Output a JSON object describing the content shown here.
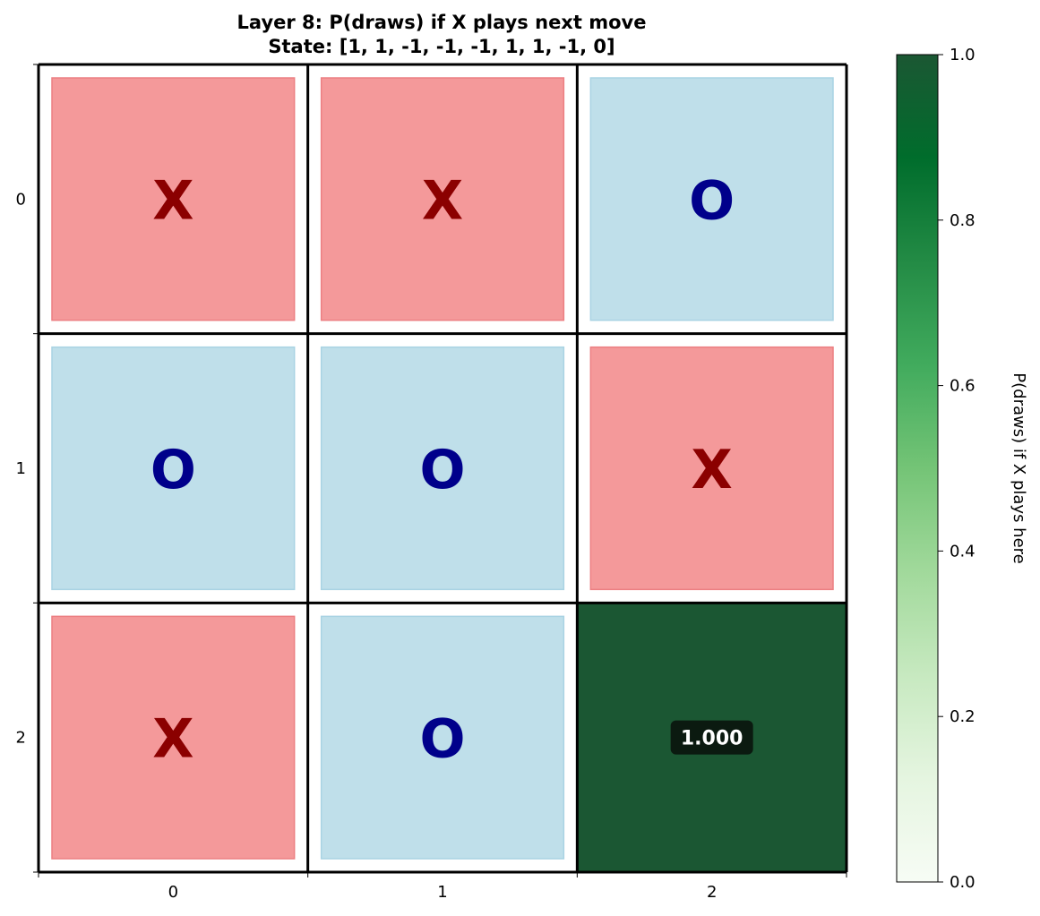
{
  "chart_data": {
    "type": "heatmap",
    "title": "Layer 8: P(draws) if X plays next move",
    "subtitle": "State: [1, 1, -1, -1, -1, 1, 1, -1, 0]",
    "x_ticks": [
      "0",
      "1",
      "2"
    ],
    "y_ticks": [
      "0",
      "1",
      "2"
    ],
    "board": [
      [
        "X",
        "X",
        "O"
      ],
      [
        "O",
        "O",
        "X"
      ],
      [
        "X",
        "O",
        ""
      ]
    ],
    "values": [
      [
        null,
        null,
        null
      ],
      [
        null,
        null,
        null
      ],
      [
        null,
        null,
        1.0
      ]
    ],
    "value_labels": [
      [
        "",
        "",
        ""
      ],
      [
        "",
        "",
        ""
      ],
      [
        "",
        "",
        "1.000"
      ]
    ],
    "colorbar": {
      "label": "P(draws) if X plays here",
      "range": [
        0,
        1
      ],
      "ticks": [
        "0.0",
        "0.2",
        "0.4",
        "0.6",
        "0.8",
        "1.0"
      ],
      "colormap": "Greens"
    },
    "colors": {
      "x_cell": "#f4999a",
      "o_cell": "#bfdfea",
      "x_mark": "#8b0000",
      "o_mark": "#00008b",
      "value_high": "#1b5733"
    }
  }
}
